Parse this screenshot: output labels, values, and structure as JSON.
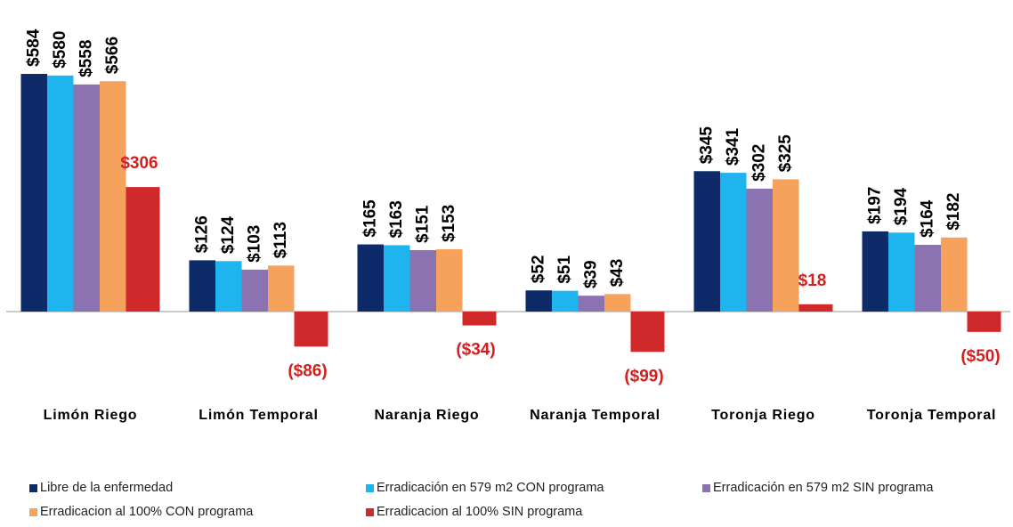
{
  "chart_data": {
    "type": "bar",
    "categories": [
      "Limón Riego",
      "Limón Temporal",
      "Naranja Riego",
      "Naranja Temporal",
      "Toronja Riego",
      "Toronja Temporal"
    ],
    "series": [
      {
        "name": "Libre de la enfermedad",
        "color": "#0e2a68",
        "values": [
          584,
          126,
          165,
          52,
          345,
          197
        ],
        "value_labels": [
          "$584",
          "$126",
          "$165",
          "$52",
          "$345",
          "$197"
        ]
      },
      {
        "name": "Erradicación en 579 m2 CON programa",
        "color": "#1eb5ee",
        "values": [
          580,
          124,
          163,
          51,
          341,
          194
        ],
        "value_labels": [
          "$580",
          "$124",
          "$163",
          "$51",
          "$341",
          "$194"
        ]
      },
      {
        "name": "Erradicación en 579 m2 SIN programa",
        "color": "#8b72b1",
        "values": [
          558,
          103,
          151,
          39,
          302,
          164
        ],
        "value_labels": [
          "$558",
          "$103",
          "$151",
          "$39",
          "$302",
          "$164"
        ]
      },
      {
        "name": "Erradicacion al 100% CON programa",
        "color": "#f6a25c",
        "values": [
          566,
          113,
          153,
          43,
          325,
          182
        ],
        "value_labels": [
          "$566",
          "$113",
          "$153",
          "$43",
          "$325",
          "$182"
        ]
      },
      {
        "name": "Erradicacion al 100% SIN programa",
        "color": "#d0292c",
        "values": [
          306,
          -86,
          -34,
          -99,
          18,
          -50
        ],
        "value_labels": [
          "$306",
          "($86)",
          "($34)",
          "($99)",
          "$18",
          "($50)"
        ]
      }
    ],
    "value_label_color": "#d41f1f"
  }
}
